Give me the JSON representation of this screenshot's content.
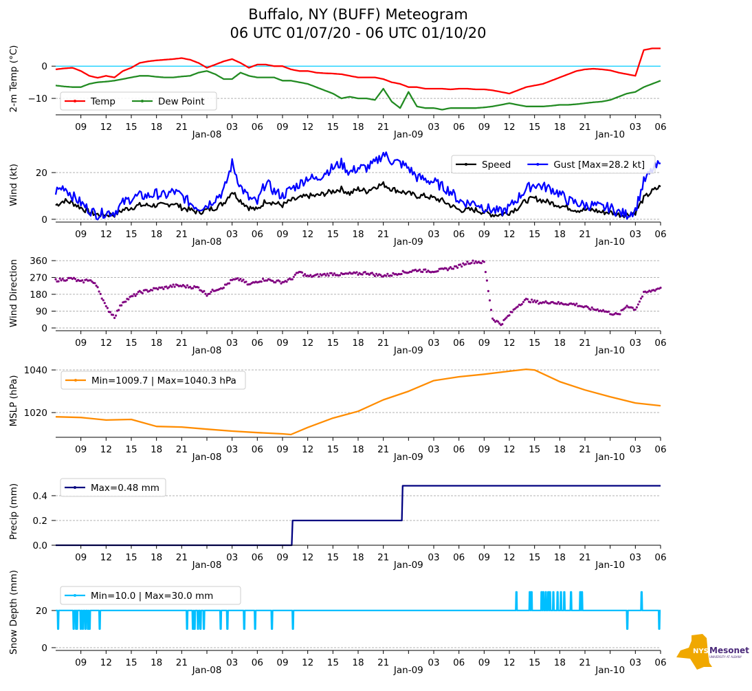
{
  "chart_data": {
    "type": "line",
    "title": "Buffalo, NY (BUFF) Meteogram",
    "subtitle": "06 UTC 01/07/20 - 06 UTC 01/10/20",
    "x_unit": "hours since 06 UTC 01/07/20",
    "xlim": [
      0,
      72
    ],
    "xticks": [
      {
        "h": 3,
        "label": "09"
      },
      {
        "h": 6,
        "label": "12"
      },
      {
        "h": 9,
        "label": "15"
      },
      {
        "h": 12,
        "label": "18"
      },
      {
        "h": 15,
        "label": "21"
      },
      {
        "h": 18,
        "label": "Jan-08",
        "date": true
      },
      {
        "h": 21,
        "label": "03"
      },
      {
        "h": 24,
        "label": "06"
      },
      {
        "h": 27,
        "label": "09"
      },
      {
        "h": 30,
        "label": "12"
      },
      {
        "h": 33,
        "label": "15"
      },
      {
        "h": 36,
        "label": "18"
      },
      {
        "h": 39,
        "label": "21"
      },
      {
        "h": 42,
        "label": "Jan-09",
        "date": true
      },
      {
        "h": 45,
        "label": "03"
      },
      {
        "h": 48,
        "label": "06"
      },
      {
        "h": 51,
        "label": "09"
      },
      {
        "h": 54,
        "label": "12"
      },
      {
        "h": 57,
        "label": "15"
      },
      {
        "h": 60,
        "label": "18"
      },
      {
        "h": 63,
        "label": "21"
      },
      {
        "h": 66,
        "label": "Jan-10",
        "date": true
      },
      {
        "h": 69,
        "label": "03"
      },
      {
        "h": 72,
        "label": "06"
      }
    ],
    "panels": [
      {
        "id": "temp",
        "ylabel": "2-m Temp (°C)",
        "ylim": [
          -15.1,
          7.3
        ],
        "yticks": [
          {
            "v": 0,
            "label": "0"
          },
          {
            "v": -10,
            "label": "−10"
          }
        ],
        "grid": true,
        "reference_line": {
          "value": 0,
          "color": "#00ccff"
        },
        "legend": {
          "placement": "lower-left",
          "ncol": 2
        },
        "series": [
          {
            "name": "Temp",
            "color": "#ff0000",
            "values": [
              -1,
              -0.7,
              -0.5,
              -1.5,
              -3,
              -3.6,
              -3,
              -3.5,
              -1.5,
              -0.5,
              1,
              1.5,
              1.8,
              2,
              2.2,
              2.5,
              2,
              1,
              -0.5,
              0.5,
              1.5,
              2.2,
              1,
              -0.5,
              0.5,
              0.5,
              0,
              0,
              -1,
              -1.5,
              -1.5,
              -2,
              -2.2,
              -2.3,
              -2.5,
              -3,
              -3.5,
              -3.5,
              -3.5,
              -4,
              -5,
              -5.5,
              -6.5,
              -6.5,
              -7,
              -7,
              -7,
              -7.2,
              -7,
              -7,
              -7.2,
              -7.2,
              -7.5,
              -8,
              -8.5,
              -7.5,
              -6.5,
              -6,
              -5.5,
              -4.5,
              -3.5,
              -2.5,
              -1.5,
              -1,
              -0.8,
              -1,
              -1.3,
              -2,
              -2.5,
              -3,
              5,
              5.5,
              5.5
            ]
          },
          {
            "name": "Dew Point",
            "color": "#228b22",
            "values": [
              -6,
              -6.3,
              -6.5,
              -6.5,
              -5.5,
              -5,
              -4.8,
              -4.5,
              -4,
              -3.5,
              -3,
              -3,
              -3.3,
              -3.5,
              -3.5,
              -3.2,
              -3,
              -2,
              -1.5,
              -2.5,
              -4,
              -4,
              -2,
              -3,
              -3.5,
              -3.5,
              -3.5,
              -4.5,
              -4.5,
              -5,
              -5.5,
              -6.5,
              -7.5,
              -8.5,
              -10,
              -9.5,
              -10,
              -10,
              -10.5,
              -7,
              -11,
              -13,
              -8,
              -12.5,
              -13,
              -13,
              -13.5,
              -13,
              -13,
              -13,
              -13,
              -12.8,
              -12.5,
              -12,
              -11.5,
              -12,
              -12.5,
              -12.5,
              -12.5,
              -12.3,
              -12,
              -12,
              -11.8,
              -11.5,
              -11.2,
              -11,
              -10.5,
              -9.5,
              -8.5,
              -8,
              -6.5,
              -5.5,
              -4.5
            ]
          }
        ]
      },
      {
        "id": "wind",
        "ylabel": "Wind (kt)",
        "ylim": [
          -1.2,
          30.6
        ],
        "yticks": [
          {
            "v": 0,
            "label": "0"
          },
          {
            "v": 20,
            "label": "20"
          }
        ],
        "grid": true,
        "legend": {
          "placement": "upper-right",
          "ncol": 2
        },
        "series": [
          {
            "name": "Speed",
            "color": "#000000",
            "noise": 1.2,
            "values": [
              6,
              8,
              7,
              5,
              3,
              2,
              2,
              2,
              4,
              5,
              6,
              6,
              6,
              6,
              7,
              5,
              4,
              3,
              4,
              5,
              7,
              12,
              8,
              5,
              4,
              8,
              7,
              6,
              8,
              9,
              10,
              10,
              11,
              12,
              13,
              11,
              13,
              12,
              14,
              15,
              13,
              12,
              11,
              10,
              10,
              9,
              8,
              6,
              4,
              4,
              4,
              3,
              2,
              2,
              3,
              5,
              8,
              9,
              8,
              7,
              6,
              5,
              4,
              4,
              4,
              3,
              3,
              2,
              2,
              3,
              9,
              12,
              14
            ]
          },
          {
            "name": "Gust [Max=28.2 kt]",
            "color": "#0000ff",
            "noise": 2.2,
            "values": [
              12,
              14,
              10,
              7,
              4,
              2,
              3,
              3,
              7,
              9,
              10,
              10,
              11,
              10,
              12,
              10,
              7,
              5,
              6,
              9,
              12,
              24,
              14,
              9,
              7,
              16,
              12,
              10,
              13,
              15,
              18,
              17,
              20,
              22,
              24,
              20,
              22,
              22,
              24,
              28.2,
              25,
              24,
              22,
              18,
              17,
              16,
              14,
              12,
              8,
              7,
              7,
              5,
              4,
              3,
              5,
              9,
              13,
              15,
              14,
              13,
              11,
              8,
              7,
              6,
              6,
              5,
              5,
              3,
              2,
              4,
              16,
              21,
              24
            ]
          }
        ]
      },
      {
        "id": "direction",
        "ylabel": "Wind Direction",
        "ylim": [
          -14.7,
          386
        ],
        "yticks": [
          {
            "v": 0,
            "label": "0"
          },
          {
            "v": 90,
            "label": "90"
          },
          {
            "v": 180,
            "label": "180"
          },
          {
            "v": 270,
            "label": "270"
          },
          {
            "v": 360,
            "label": "360"
          }
        ],
        "grid": true,
        "scatter": true,
        "series": [
          {
            "name": "Wind Direction",
            "color": "#800080",
            "noise": 8,
            "values": [
              255,
              260,
              265,
              245,
              260,
              220,
              110,
              60,
              140,
              165,
              190,
              200,
              210,
              215,
              225,
              225,
              220,
              215,
              180,
              205,
              220,
              255,
              260,
              230,
              250,
              260,
              250,
              245,
              260,
              300,
              275,
              280,
              285,
              290,
              285,
              290,
              290,
              295,
              285,
              280,
              285,
              295,
              300,
              310,
              305,
              305,
              310,
              320,
              330,
              350,
              355,
              350,
              50,
              20,
              70,
              120,
              150,
              140,
              135,
              140,
              130,
              130,
              125,
              110,
              100,
              95,
              80,
              70,
              120,
              100,
              185,
              200,
              215
            ]
          }
        ]
      },
      {
        "id": "mslp",
        "ylabel": "MSLP (hPa)",
        "ylim": [
          1008.4,
          1042.6
        ],
        "yticks": [
          {
            "v": 1020,
            "label": "1020"
          },
          {
            "v": 1040,
            "label": "1040"
          }
        ],
        "grid": true,
        "legend": {
          "placement": "upper-left",
          "ncol": 1
        },
        "series": [
          {
            "name": "Min=1009.7 | Max=1040.3 hPa",
            "color": "#ff8c00",
            "points": [
              [
                0,
                1018
              ],
              [
                3,
                1017.7
              ],
              [
                6,
                1016.5
              ],
              [
                9,
                1016.8
              ],
              [
                12,
                1013.5
              ],
              [
                15,
                1013.2
              ],
              [
                18,
                1012.2
              ],
              [
                21,
                1011.3
              ],
              [
                24,
                1010.6
              ],
              [
                27,
                1010
              ],
              [
                28,
                1009.7
              ],
              [
                30,
                1013
              ],
              [
                33,
                1017.4
              ],
              [
                36,
                1020.6
              ],
              [
                39,
                1026
              ],
              [
                42,
                1030
              ],
              [
                45,
                1035
              ],
              [
                48,
                1036.8
              ],
              [
                51,
                1038
              ],
              [
                54,
                1039.4
              ],
              [
                56,
                1040.3
              ],
              [
                57,
                1040
              ],
              [
                60,
                1034.5
              ],
              [
                63,
                1030.6
              ],
              [
                66,
                1027.4
              ],
              [
                69,
                1024.5
              ],
              [
                72,
                1023.2
              ]
            ]
          }
        ]
      },
      {
        "id": "precip",
        "ylabel": "Precip (mm)",
        "ylim": [
          0,
          0.544
        ],
        "yticks": [
          {
            "v": 0,
            "label": "0.0"
          },
          {
            "v": 0.2,
            "label": "0.2"
          },
          {
            "v": 0.4,
            "label": "0.4"
          }
        ],
        "grid": true,
        "legend": {
          "placement": "upper-left",
          "ncol": 1
        },
        "series": [
          {
            "name": "Max=0.48 mm",
            "color": "#000080",
            "points": [
              [
                0,
                0
              ],
              [
                28.1,
                0
              ],
              [
                28.2,
                0.2
              ],
              [
                41.2,
                0.2
              ],
              [
                41.3,
                0.48
              ],
              [
                72,
                0.48
              ]
            ]
          }
        ]
      },
      {
        "id": "snow",
        "ylabel": "Snow Depth (mm)",
        "ylim": [
          -1.5,
          39.6
        ],
        "yticks": [
          {
            "v": 0,
            "label": "0"
          },
          {
            "v": 20,
            "label": "20"
          }
        ],
        "grid": true,
        "legend": {
          "placement": "upper-left",
          "ncol": 1
        },
        "series": [
          {
            "name": "Min=10.0 | Max=30.0 mm",
            "color": "#00bfff",
            "base": 20,
            "dips_to_10_hours": [
              0.25,
              2.1,
              2.4,
              2.5,
              2.95,
              3.2,
              3.5,
              3.8,
              4.0,
              5.2,
              15.6,
              16.3,
              16.5,
              16.9,
              17.2,
              17.6,
              19.6,
              20.4,
              22.4,
              23.7,
              25.7,
              28.2,
              68.0,
              71.8
            ],
            "spikes_to_30_hours": [
              54.8,
              56.4,
              56.6,
              57.8,
              58.0,
              58.3,
              58.6,
              58.8,
              59.2,
              59.7,
              60.1,
              60.5,
              61.3,
              62.4,
              62.6,
              69.7
            ]
          }
        ]
      }
    ]
  },
  "logo": {
    "text": "NYS Mesonet",
    "subtext": "UNIVERSITY AT ALBANY"
  }
}
